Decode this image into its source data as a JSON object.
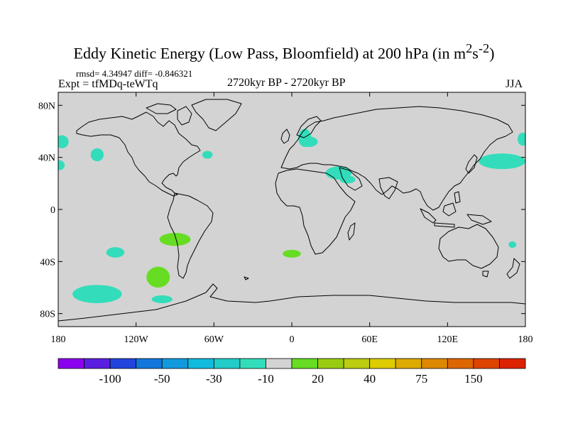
{
  "title": {
    "main": "Eddy Kinetic Energy (Low Pass, Bloomfield) at 200 hPa (in m",
    "sup1": "2",
    "mid": "s",
    "sup2": "-2",
    "end": ")"
  },
  "stats": "rmsd= 4.34947 diff= -0.846321",
  "expt": "Expt = tfMDq-teWTq",
  "period": "2720kyr BP - 2720kyr BP",
  "season": "JJA",
  "colors": {
    "ocean": "#d3d3d3",
    "coast": "#000000",
    "neg_light": "#33ddbb",
    "pos_light": "#66dd22"
  },
  "chart_data": {
    "type": "heatmap",
    "projection": "cylindrical-equidistant",
    "xlim": [
      -180,
      180
    ],
    "ylim": [
      -90,
      90
    ],
    "x_ticks": [
      {
        "value": -180,
        "label": "180"
      },
      {
        "value": -120,
        "label": "120W"
      },
      {
        "value": -60,
        "label": "60W"
      },
      {
        "value": 0,
        "label": "0"
      },
      {
        "value": 60,
        "label": "60E"
      },
      {
        "value": 120,
        "label": "120E"
      },
      {
        "value": 180,
        "label": "180"
      }
    ],
    "y_ticks": [
      {
        "value": 80,
        "label": "80N"
      },
      {
        "value": 40,
        "label": "40N"
      },
      {
        "value": 0,
        "label": "0"
      },
      {
        "value": -40,
        "label": "40S"
      },
      {
        "value": -80,
        "label": "80S"
      }
    ],
    "colorbar": {
      "colors": [
        "#8b00ee",
        "#5a1fe0",
        "#2244dd",
        "#1177dd",
        "#1199dd",
        "#11bbdd",
        "#22ccc8",
        "#33ddbb",
        "#d3d3d3",
        "#66dd22",
        "#99cc11",
        "#bbcc11",
        "#ddcc00",
        "#ddaa00",
        "#dd8800",
        "#dd6600",
        "#dd4400",
        "#dd2200"
      ],
      "labels": [
        {
          "after_box": 2,
          "label": "-100"
        },
        {
          "after_box": 4,
          "label": "-50"
        },
        {
          "after_box": 6,
          "label": "-30"
        },
        {
          "after_box": 8,
          "label": "-10"
        },
        {
          "after_box": 10,
          "label": "20"
        },
        {
          "after_box": 12,
          "label": "40"
        },
        {
          "after_box": 14,
          "label": "75"
        },
        {
          "after_box": 16,
          "label": "150"
        }
      ]
    },
    "anomaly_patches": [
      {
        "lon": -177,
        "lat": 52,
        "rlon": 5,
        "rlat": 5,
        "value": -10
      },
      {
        "lon": -180,
        "lat": 34,
        "rlon": 5,
        "rlat": 4,
        "value": -10
      },
      {
        "lon": -150,
        "lat": 42,
        "rlon": 5,
        "rlat": 5,
        "value": -10
      },
      {
        "lon": -65,
        "lat": 42,
        "rlon": 4,
        "rlat": 3,
        "value": -10
      },
      {
        "lon": 10,
        "lat": 55,
        "rlon": 5,
        "rlat": 7,
        "value": -10
      },
      {
        "lon": 13,
        "lat": 52,
        "rlon": 7,
        "rlat": 4,
        "value": -10
      },
      {
        "lon": 10,
        "lat": 58,
        "rlon": 4,
        "rlat": 3,
        "value": -10
      },
      {
        "lon": 36,
        "lat": 28,
        "rlon": 10,
        "rlat": 5,
        "value": -10
      },
      {
        "lon": 43,
        "lat": 23,
        "rlon": 6,
        "rlat": 3,
        "value": -10
      },
      {
        "lon": 162,
        "lat": 37,
        "rlon": 18,
        "rlat": 6,
        "value": -10
      },
      {
        "lon": 178,
        "lat": 54,
        "rlon": 4,
        "rlat": 5,
        "value": -10
      },
      {
        "lon": 170,
        "lat": -27,
        "rlon": 3,
        "rlat": 2.5,
        "value": -10
      },
      {
        "lon": -136,
        "lat": -33,
        "rlon": 7,
        "rlat": 4,
        "value": -10
      },
      {
        "lon": -150,
        "lat": -65,
        "rlon": 19,
        "rlat": 7,
        "value": -10
      },
      {
        "lon": -100,
        "lat": -69,
        "rlon": 8,
        "rlat": 3,
        "value": -10
      },
      {
        "lon": -90,
        "lat": -23,
        "rlon": 12,
        "rlat": 5,
        "value": 20
      },
      {
        "lon": -103,
        "lat": -52,
        "rlon": 9,
        "rlat": 8,
        "value": 20
      },
      {
        "lon": 0,
        "lat": -34,
        "rlon": 7,
        "rlat": 3,
        "value": 20
      }
    ]
  }
}
